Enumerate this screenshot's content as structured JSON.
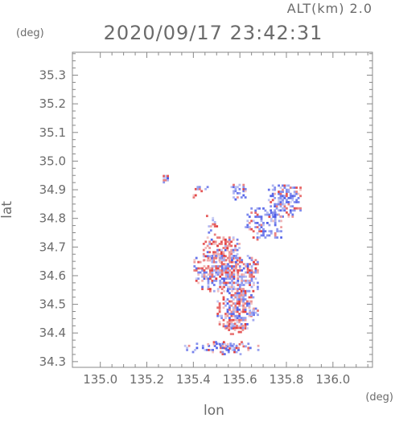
{
  "header": {
    "altitude_label": "ALT(km) 2.0",
    "timestamp": "2020/09/17 23:42:31"
  },
  "colors": {
    "axis": "#888888",
    "text": "#6b6b6b",
    "positive": "#e23a3a",
    "negative": "#4a5ae8",
    "neutral": "#f2f2f2"
  },
  "chart_data": {
    "type": "heatmap",
    "title": "2020/09/17 23:42:31",
    "subtitle": "ALT(km) 2.0",
    "xlabel": "lon",
    "ylabel": "lat",
    "xunit": "(deg)",
    "yunit": "(deg)",
    "xlim": [
      134.88,
      136.17
    ],
    "ylim": [
      34.28,
      35.38
    ],
    "xticks": [
      "135.0",
      "135.2",
      "135.4",
      "135.6",
      "135.8",
      "136.0"
    ],
    "yticks": [
      "34.3",
      "34.4",
      "34.5",
      "34.6",
      "34.7",
      "34.8",
      "34.9",
      "35.0",
      "35.1",
      "35.2",
      "35.3"
    ],
    "colorscale": "diverging blue-white-red (approaching / receding)",
    "regions": [
      {
        "name": "isolated-echo",
        "lon": [
          135.26,
          135.29
        ],
        "lat": [
          34.93,
          34.955
        ],
        "bias": "negative",
        "density": 0.9
      },
      {
        "name": "northern-arc-west",
        "lon": [
          135.38,
          135.46
        ],
        "lat": [
          34.87,
          34.92
        ],
        "bias": "mixed",
        "density": 0.35
      },
      {
        "name": "northern-arc-east",
        "lon": [
          135.56,
          135.62
        ],
        "lat": [
          34.87,
          34.93
        ],
        "bias": "negative",
        "density": 0.4
      },
      {
        "name": "ne-cluster",
        "lon": [
          135.72,
          135.86
        ],
        "lat": [
          34.81,
          34.92
        ],
        "bias": "negative",
        "density": 0.6
      },
      {
        "name": "ne-ring",
        "lon": [
          135.62,
          135.78
        ],
        "lat": [
          34.73,
          34.84
        ],
        "bias": "negative",
        "density": 0.45
      },
      {
        "name": "mid-west-specks",
        "lon": [
          135.42,
          135.5
        ],
        "lat": [
          34.74,
          34.83
        ],
        "bias": "mixed",
        "density": 0.2
      },
      {
        "name": "upper-band",
        "lon": [
          135.44,
          135.6
        ],
        "lat": [
          34.65,
          34.74
        ],
        "bias": "positive",
        "density": 0.65
      },
      {
        "name": "central-mass",
        "lon": [
          135.4,
          135.68
        ],
        "lat": [
          34.55,
          34.68
        ],
        "bias": "mixed",
        "density": 0.8
      },
      {
        "name": "southern-column",
        "lon": [
          135.5,
          135.66
        ],
        "lat": [
          34.42,
          34.56
        ],
        "bias": "mixed",
        "density": 0.75
      },
      {
        "name": "south-east-patch",
        "lon": [
          135.63,
          135.68
        ],
        "lat": [
          34.46,
          34.49
        ],
        "bias": "negative",
        "density": 0.9
      },
      {
        "name": "south-tail",
        "lon": [
          135.54,
          135.62
        ],
        "lat": [
          34.4,
          34.44
        ],
        "bias": "positive",
        "density": 0.5
      },
      {
        "name": "coast-strip",
        "lon": [
          135.36,
          135.68
        ],
        "lat": [
          34.33,
          34.37
        ],
        "bias": "negative",
        "density": 0.45
      },
      {
        "name": "coast-strip-2",
        "lon": [
          135.45,
          135.62
        ],
        "lat": [
          34.35,
          34.38
        ],
        "bias": "mixed",
        "density": 0.3
      }
    ]
  }
}
